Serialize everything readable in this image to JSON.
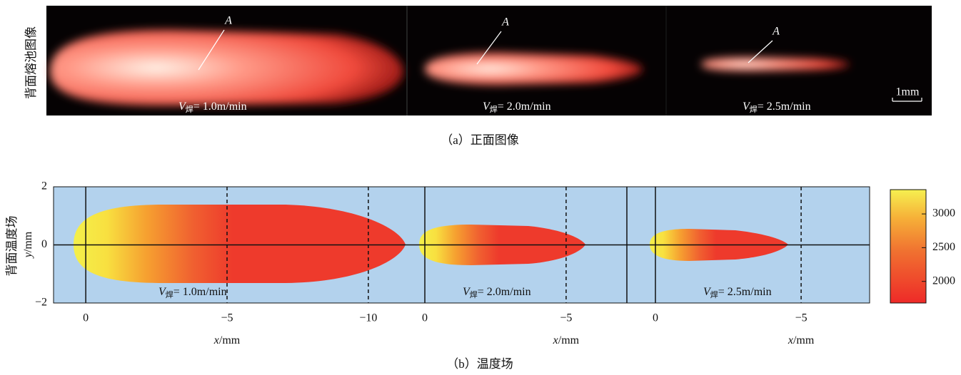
{
  "panel_a": {
    "y_label": "背面熔池图像",
    "images": [
      {
        "marker": "A",
        "speed": {
          "symbol": "V",
          "subscript": "焊",
          "text": "= 1.0m/min"
        }
      },
      {
        "marker": "A",
        "speed": {
          "symbol": "V",
          "subscript": "焊",
          "text": "= 2.0m/min"
        }
      },
      {
        "marker": "A",
        "speed": {
          "symbol": "V",
          "subscript": "焊",
          "text": "= 2.5m/min"
        }
      }
    ],
    "scale_bar": "1mm",
    "caption": "（a）正面图像"
  },
  "panel_b": {
    "y_label": "背面温度场",
    "y_axis_label": {
      "symbol": "y",
      "unit": "/mm"
    },
    "ylim": [
      -2,
      2
    ],
    "yticks": [
      2,
      0,
      {
        "value": -2,
        "label": "−2"
      }
    ],
    "plots": [
      {
        "xlim": [
          1.14,
          -11.62
        ],
        "xticks": [
          0,
          {
            "value": -5,
            "label": "−5"
          },
          {
            "value": -10,
            "label": "−10"
          }
        ],
        "x_label": {
          "symbol": "x",
          "unit": "/mm"
        },
        "speed": {
          "symbol": "V",
          "subscript": "焊",
          "text": "= 1.0m/min"
        }
      },
      {
        "xlim": [
          0.38,
          -7.15
        ],
        "xticks": [
          0,
          {
            "value": -5,
            "label": "−5"
          }
        ],
        "x_label": {
          "symbol": "x",
          "unit": "/mm"
        },
        "speed": {
          "symbol": "V",
          "subscript": "焊",
          "text": "= 2.0m/min"
        }
      },
      {
        "xlim": [
          0.98,
          -7.35
        ],
        "xticks": [
          0,
          {
            "value": -5,
            "label": "−5"
          }
        ],
        "x_label": {
          "symbol": "x",
          "unit": "/mm"
        },
        "speed": {
          "symbol": "V",
          "subscript": "焊",
          "text": "= 2.5m/min"
        }
      }
    ],
    "colorbar": {
      "clim": [
        1680,
        3360
      ],
      "ticks": [
        3000,
        2500,
        2000
      ]
    },
    "caption": "（b）温度场"
  }
}
